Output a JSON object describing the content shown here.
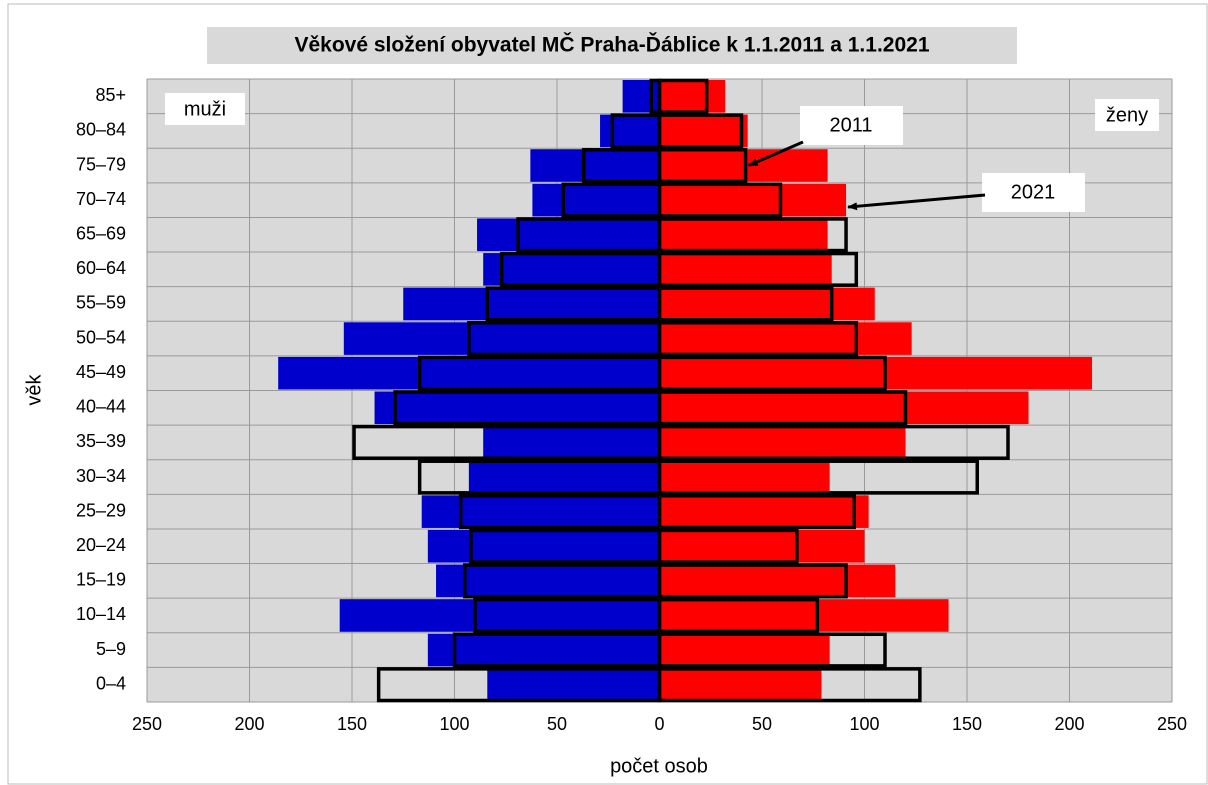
{
  "chart_data": {
    "type": "pyramid",
    "title": "Věkové složení obyvatel MČ Praha-Ďáblice k 1.1.2011 a 1.1.2021",
    "x_label": "počet osob",
    "y_label": "věk",
    "categories": [
      "0–4",
      "5–9",
      "10–14",
      "15–19",
      "20–24",
      "25–29",
      "30–34",
      "35–39",
      "40–44",
      "45–49",
      "50–54",
      "55–59",
      "60–64",
      "65–69",
      "70–74",
      "75–79",
      "80–84",
      "85+"
    ],
    "fill_year": "2021",
    "outline_year": "2011",
    "series": [
      {
        "name": "muži",
        "color": "#0000cc",
        "values": [
          -84,
          -113,
          -156,
          -109,
          -113,
          -116,
          -93,
          -86,
          -139,
          -186,
          -154,
          -125,
          -86,
          -89,
          -62,
          -63,
          -29,
          -18
        ],
        "outline_values": [
          -137,
          -100,
          -90,
          -95,
          -92,
          -97,
          -117,
          -149,
          -129,
          -117,
          -93,
          -84,
          -77,
          -69,
          -47,
          -37,
          -23,
          -4
        ]
      },
      {
        "name": "ženy",
        "color": "#ff0000",
        "values": [
          79,
          83,
          141,
          115,
          100,
          102,
          83,
          120,
          180,
          211,
          123,
          105,
          84,
          82,
          91,
          82,
          43,
          32
        ],
        "outline_values": [
          127,
          110,
          77,
          91,
          67,
          95,
          155,
          170,
          120,
          110,
          96,
          84,
          96,
          91,
          59,
          42,
          40,
          23
        ]
      }
    ],
    "xlim": [
      -250,
      250
    ],
    "xticks": [
      {
        "value": -250,
        "label": "250"
      },
      {
        "value": -200,
        "label": "200"
      },
      {
        "value": -150,
        "label": "150"
      },
      {
        "value": -100,
        "label": "100"
      },
      {
        "value": -50,
        "label": "50"
      },
      0,
      50,
      100,
      150,
      200,
      250
    ],
    "grid": true
  }
}
